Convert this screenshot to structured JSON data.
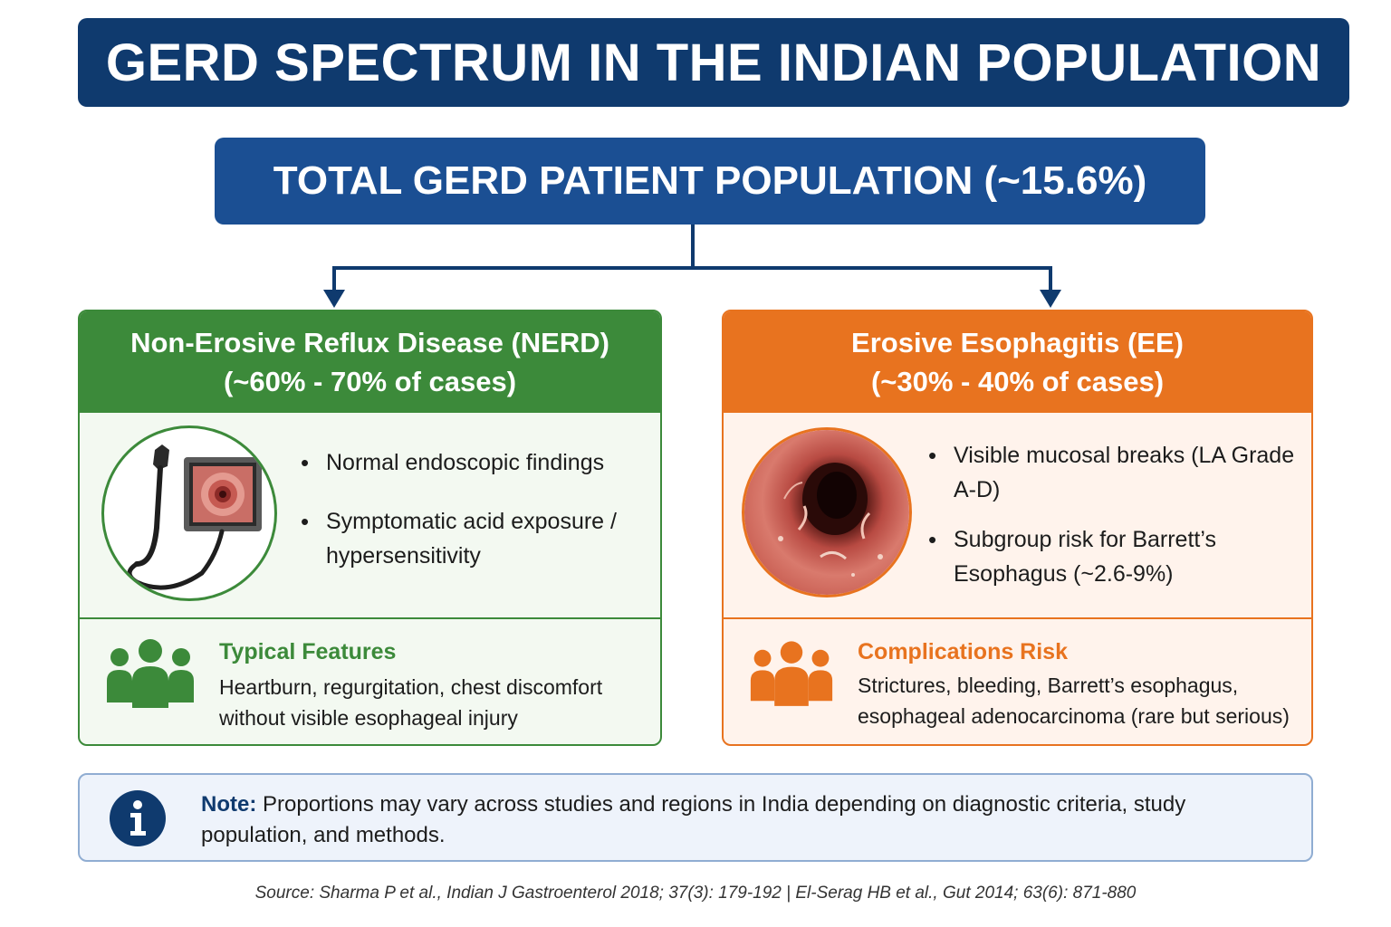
{
  "title": "GERD SPECTRUM IN THE INDIAN POPULATION",
  "total": "TOTAL GERD PATIENT POPULATION (~15.6%)",
  "nerd": {
    "heading": "Non-Erosive Reflux Disease (NERD)",
    "share": "(~60% - 70% of cases)",
    "bullets": [
      "Normal endoscopic findings",
      "Symptomatic acid exposure / hypersensitivity"
    ],
    "feature_title": "Typical Features",
    "feature_text": "Heartburn, regurgitation, chest discomfort without visible esophageal injury",
    "image_icon": "endoscope-icon",
    "people_icon": "people-group-icon",
    "color": "#3c8a3a"
  },
  "ee": {
    "heading": "Erosive Esophagitis (EE)",
    "share": "(~30% - 40% of cases)",
    "bullets": [
      "Visible mucosal breaks (LA Grade A-D)",
      "Subgroup risk for Barrett’s Esophagus (~2.6-9%)"
    ],
    "feature_title": "Complications Risk",
    "feature_text": "Strictures, bleeding, Barrett’s esophagus, esophageal adenocarcinoma (rare but serious)",
    "image_icon": "esophagus-endoscopy-icon",
    "people_icon": "people-group-icon",
    "color": "#e8731f"
  },
  "note": {
    "label": "Note:",
    "text": "Proportions may vary across studies and regions in India depending on diagnostic criteria, study population, and methods.",
    "icon": "info-icon"
  },
  "source": "Source: Sharma P et al., Indian J Gastroenterol 2018; 37(3): 179-192  |  El-Serag HB et al., Gut 2014; 63(6): 871-880",
  "colors": {
    "navy": "#0f3a6e",
    "blue": "#1b4f93",
    "green": "#3c8a3a",
    "orange": "#e8731f"
  }
}
